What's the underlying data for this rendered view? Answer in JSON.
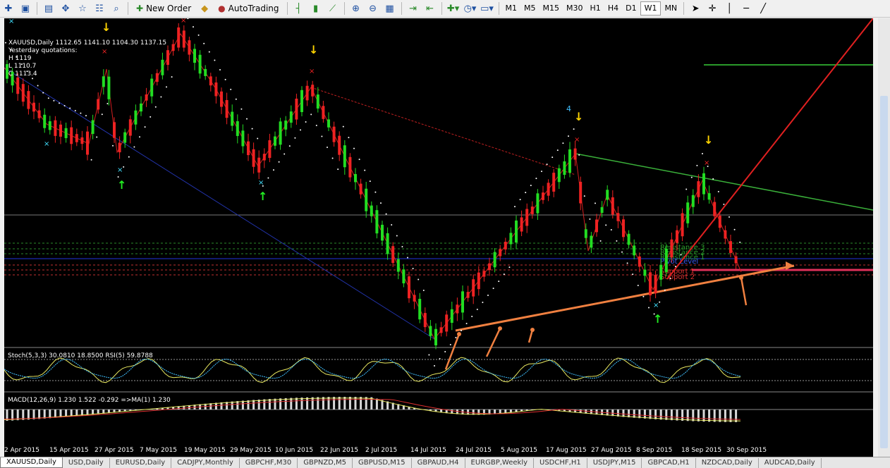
{
  "toolbar": {
    "new_order_label": "New Order",
    "autotrading_label": "AutoTrading",
    "timeframes": [
      "M1",
      "M5",
      "M15",
      "M30",
      "H1",
      "H4",
      "D1",
      "W1",
      "MN"
    ],
    "active_timeframe": "W1"
  },
  "chart": {
    "header": "XAUUSD,Daily  1112.65 1141.10 1104.30 1137.15",
    "yesterday_title": "Yesterday quotations:",
    "high": "H 1119",
    "low": "L 1110.7",
    "close": "C 1113.4",
    "wave_label": "4",
    "levels": [
      "Resistance 3",
      "Resistance 2",
      "Resistance 1",
      "Pivot Level",
      "Support 1",
      "Support 2"
    ],
    "dates": [
      "2 Apr 2015",
      "15 Apr 2015",
      "27 Apr 2015",
      "7 May 2015",
      "19 May 2015",
      "29 May 2015",
      "10 Jun 2015",
      "22 Jun 2015",
      "2 Jul 2015",
      "14 Jul 2015",
      "24 Jul 2015",
      "5 Aug 2015",
      "17 Aug 2015",
      "27 Aug 2015",
      "8 Sep 2015",
      "18 Sep 2015",
      "30 Sep 2015"
    ]
  },
  "stoch_label": "Stoch(5,3,3) 30.0810 18.8500  RSI(5) 59.8788",
  "macd_label": "MACD(12,26,9) 1.230 1.522 -0.292  =>MA(1) 1.230",
  "tabs": [
    "XAUUSD,Daily",
    "USD,Daily",
    "EURUSD,Daily",
    "CADJPY,Monthly",
    "GBPCHF,M30",
    "GBPNZD,M5",
    "GBPUSD,M15",
    "GBPAUD,H4",
    "EURGBP,Weekly",
    "USDCHF,H1",
    "USDJPY,M15",
    "GBPCAD,H1",
    "NZDCAD,Daily",
    "AUDCAD,Daily"
  ],
  "active_tab": "XAUUSD,Daily"
}
